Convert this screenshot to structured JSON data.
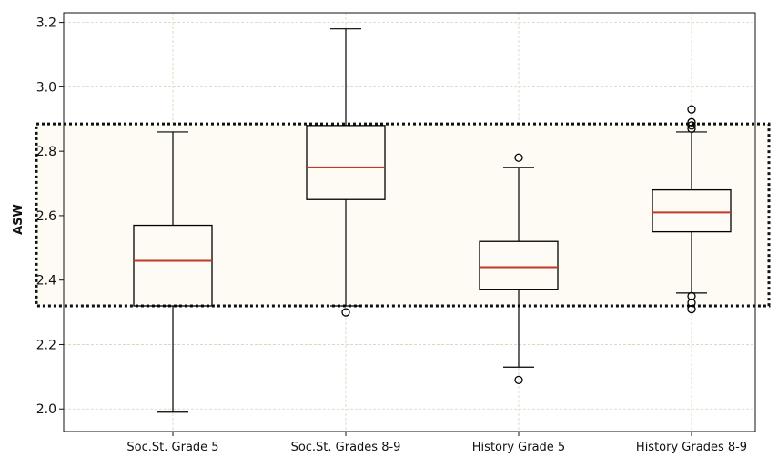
{
  "chart_data": {
    "type": "box",
    "title": "",
    "xlabel": "",
    "ylabel": "ASW",
    "ylim": [
      1.93,
      3.23
    ],
    "yticks": [
      2.0,
      2.2,
      2.4,
      2.6,
      2.8,
      3.0,
      3.2
    ],
    "ytick_labels": [
      "2.0",
      "2.2",
      "2.4",
      "2.6",
      "2.8",
      "3.0",
      "3.2"
    ],
    "grid": true,
    "categories": [
      "Soc.St. Grade 5",
      "Soc.St. Grades 8-9",
      "History Grade 5",
      "History Grades 8-9"
    ],
    "boxes": [
      {
        "whisker_low": 1.99,
        "q1": 2.32,
        "median": 2.46,
        "q3": 2.57,
        "whisker_high": 2.86,
        "outliers": []
      },
      {
        "whisker_low": 2.32,
        "q1": 2.65,
        "median": 2.75,
        "q3": 2.88,
        "whisker_high": 3.18,
        "outliers": [
          2.3
        ]
      },
      {
        "whisker_low": 2.13,
        "q1": 2.37,
        "median": 2.44,
        "q3": 2.52,
        "whisker_high": 2.75,
        "outliers": [
          2.78,
          2.09
        ]
      },
      {
        "whisker_low": 2.36,
        "q1": 2.55,
        "median": 2.61,
        "q3": 2.68,
        "whisker_high": 2.86,
        "outliers": [
          2.93,
          2.89,
          2.88,
          2.87,
          2.35,
          2.33,
          2.31
        ]
      }
    ],
    "highlight_band": {
      "y_low": 2.32,
      "y_high": 2.885
    },
    "colors": {
      "box": "#000000",
      "median": "#c0392b",
      "highlight_fill": "#fdfbf3",
      "grid": "#d9d2b5",
      "highlight_border": "#111111"
    }
  }
}
